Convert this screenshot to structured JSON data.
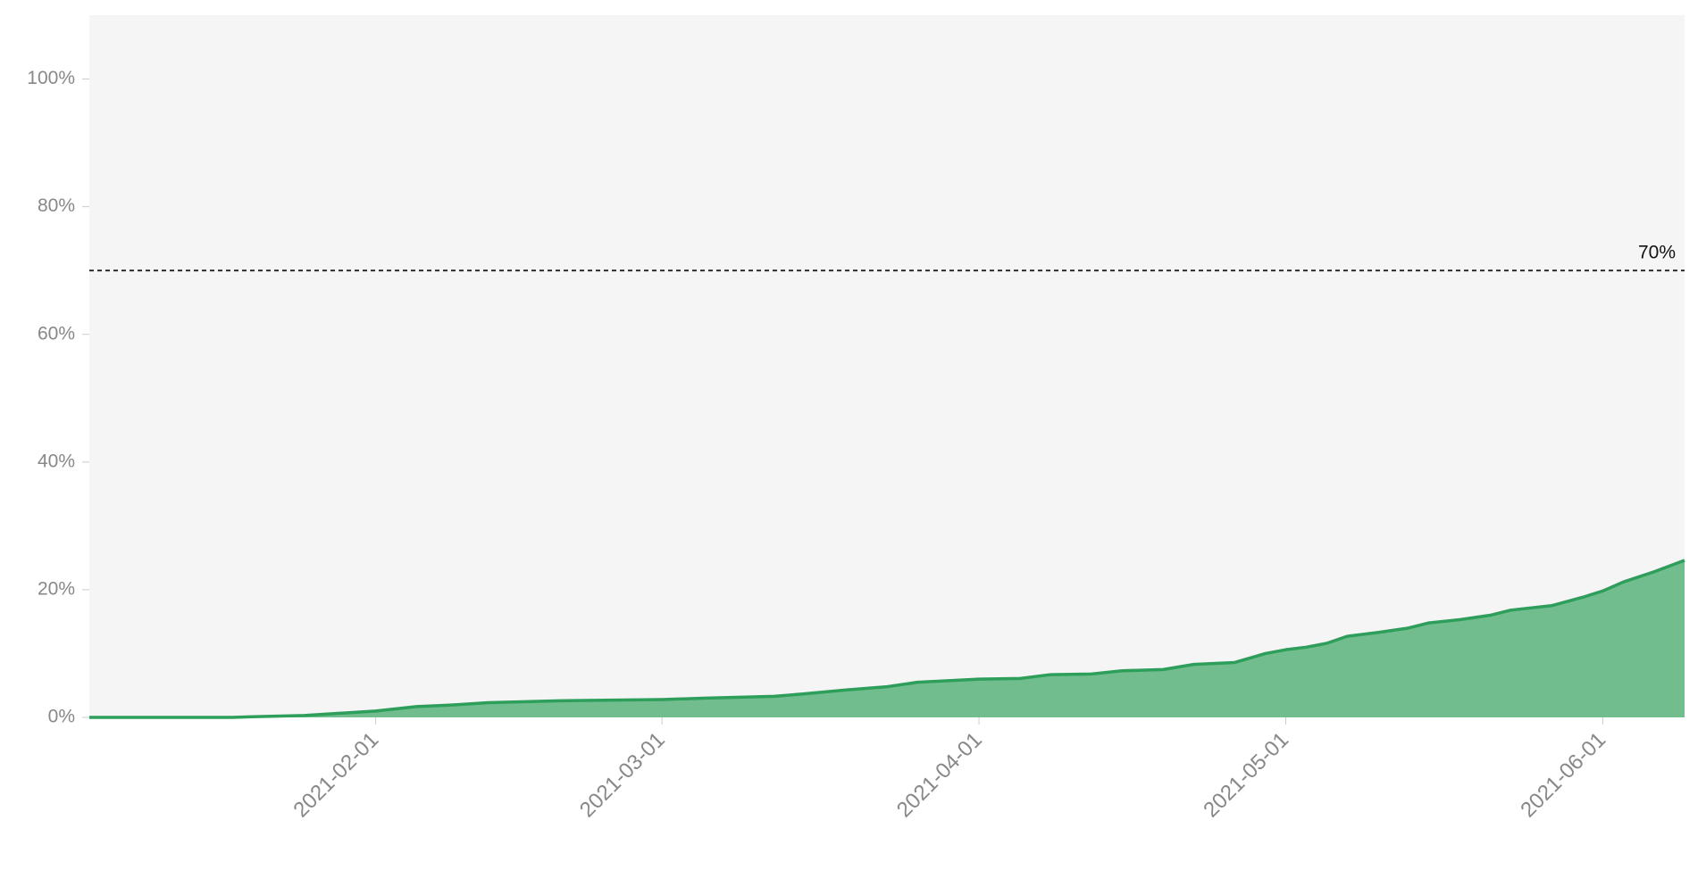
{
  "chart_data": {
    "type": "area",
    "x": [
      "2021-01-04",
      "2021-01-18",
      "2021-01-20",
      "2021-01-25",
      "2021-02-01",
      "2021-02-05",
      "2021-02-08",
      "2021-02-12",
      "2021-02-19",
      "2021-03-01",
      "2021-03-05",
      "2021-03-12",
      "2021-03-15",
      "2021-03-19",
      "2021-03-23",
      "2021-03-26",
      "2021-04-01",
      "2021-04-05",
      "2021-04-08",
      "2021-04-12",
      "2021-04-15",
      "2021-04-19",
      "2021-04-22",
      "2021-04-26",
      "2021-04-29",
      "2021-05-01",
      "2021-05-03",
      "2021-05-05",
      "2021-05-07",
      "2021-05-10",
      "2021-05-13",
      "2021-05-15",
      "2021-05-18",
      "2021-05-21",
      "2021-05-23",
      "2021-05-27",
      "2021-05-30",
      "2021-06-01",
      "2021-06-03",
      "2021-06-06",
      "2021-06-09"
    ],
    "values": [
      0,
      0,
      0.1,
      0.3,
      1.0,
      1.7,
      1.9,
      2.3,
      2.6,
      2.8,
      3.0,
      3.3,
      3.7,
      4.3,
      4.8,
      5.5,
      6.0,
      6.1,
      6.7,
      6.8,
      7.3,
      7.5,
      8.3,
      8.6,
      10.0,
      10.6,
      11.0,
      11.6,
      12.7,
      13.3,
      14.0,
      14.8,
      15.3,
      16.0,
      16.8,
      17.5,
      18.8,
      19.8,
      21.2,
      22.8,
      24.6
    ],
    "color": "#2e9e5b",
    "fill": "#72bd8d",
    "xlim": [
      "2021-01-04",
      "2021-06-09"
    ],
    "xticks": [
      "2021-02-01",
      "2021-03-01",
      "2021-04-01",
      "2021-05-01",
      "2021-06-01"
    ],
    "ylim": [
      0,
      110
    ],
    "yticks": [
      {
        "value": 0,
        "label": "0%"
      },
      {
        "value": 20,
        "label": "20%"
      },
      {
        "value": 40,
        "label": "40%"
      },
      {
        "value": 60,
        "label": "60%"
      },
      {
        "value": 80,
        "label": "80%"
      },
      {
        "value": 100,
        "label": "100%"
      }
    ],
    "threshold": {
      "value": 70,
      "label": "70%"
    },
    "grid": false
  }
}
